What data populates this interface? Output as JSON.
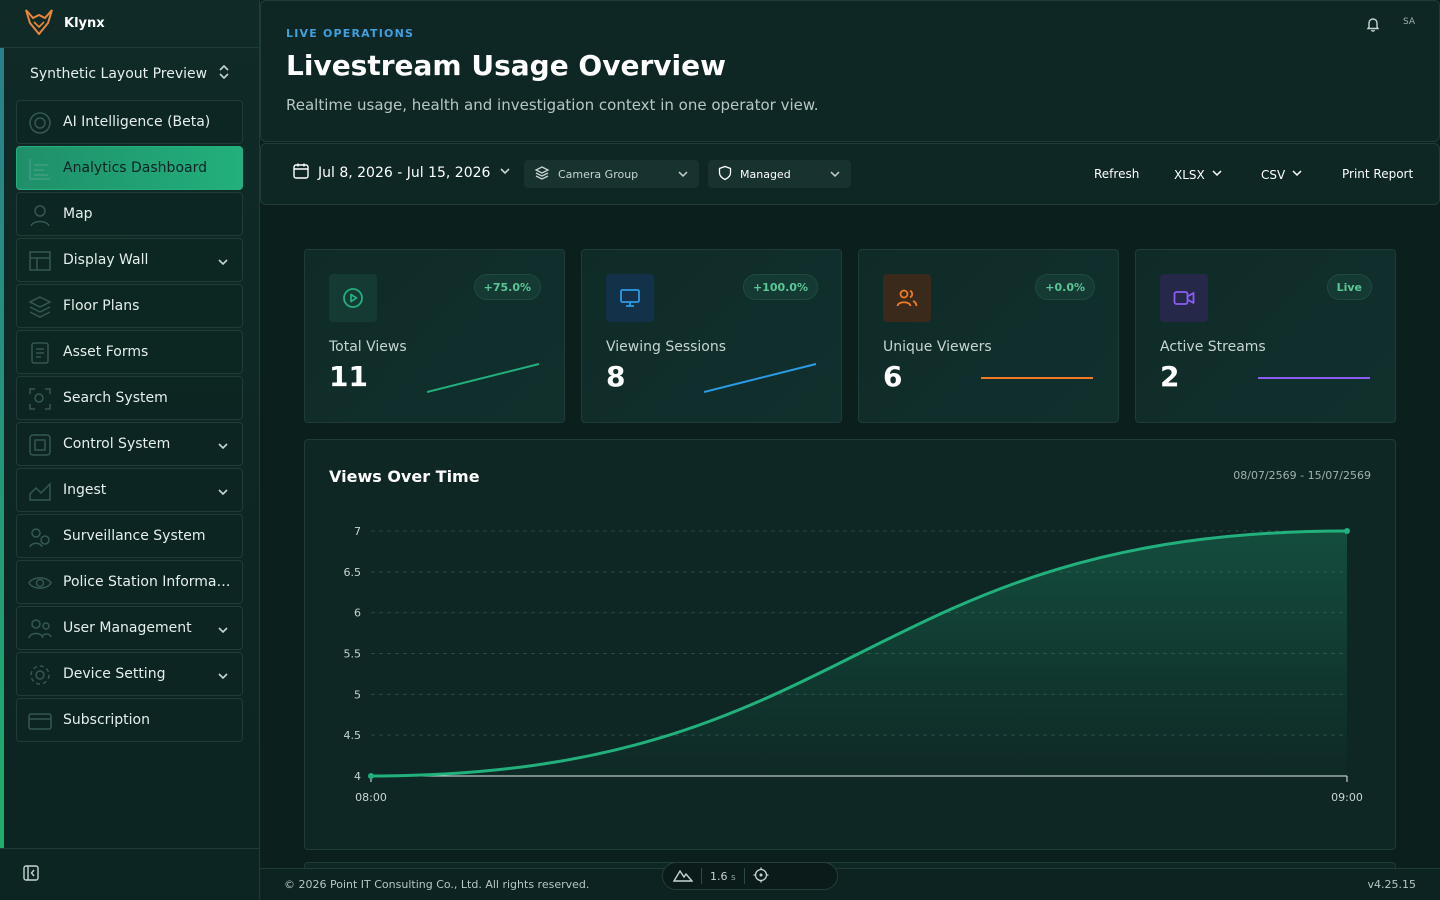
{
  "brand": {
    "name": "Klynx"
  },
  "workspace": {
    "name": "Synthetic Layout Preview"
  },
  "sidebar": {
    "items": [
      {
        "label": "AI Intelligence (Beta)",
        "icon": "ai-icon",
        "expandable": false
      },
      {
        "label": "Analytics Dashboard",
        "icon": "analytics-icon",
        "expandable": false,
        "active": true
      },
      {
        "label": "Map",
        "icon": "map-icon",
        "expandable": false
      },
      {
        "label": "Display Wall",
        "icon": "display-wall-icon",
        "expandable": true
      },
      {
        "label": "Floor Plans",
        "icon": "floor-plans-icon",
        "expandable": false
      },
      {
        "label": "Asset Forms",
        "icon": "asset-forms-icon",
        "expandable": false
      },
      {
        "label": "Search System",
        "icon": "search-system-icon",
        "expandable": false
      },
      {
        "label": "Control System",
        "icon": "control-system-icon",
        "expandable": true
      },
      {
        "label": "Ingest",
        "icon": "ingest-icon",
        "expandable": true
      },
      {
        "label": "Surveillance System",
        "icon": "surveillance-icon",
        "expandable": false
      },
      {
        "label": "Police Station Informati...",
        "icon": "police-station-icon",
        "expandable": false
      },
      {
        "label": "User Management",
        "icon": "user-management-icon",
        "expandable": true
      },
      {
        "label": "Device Setting",
        "icon": "device-setting-icon",
        "expandable": true
      },
      {
        "label": "Subscription",
        "icon": "subscription-icon",
        "expandable": false
      }
    ]
  },
  "header": {
    "eyebrow": "LIVE OPERATIONS",
    "title": "Livestream Usage Overview",
    "subtitle": "Realtime usage, health and investigation context in one operator view.",
    "avatar_initials": "SA"
  },
  "toolbar": {
    "date_range": "Jul 8, 2026 - Jul 15, 2026",
    "camera_group_placeholder": "Camera Group",
    "managed_label": "Managed",
    "refresh_label": "Refresh",
    "xlsx_label": "XLSX",
    "csv_label": "CSV",
    "print_label": "Print Report"
  },
  "stats": [
    {
      "label": "Total Views",
      "value": "11",
      "badge": "+75.0%",
      "color": "#22b07c",
      "icon": "play-circle-icon"
    },
    {
      "label": "Viewing Sessions",
      "value": "8",
      "badge": "+100.0%",
      "color": "#2b9be6",
      "icon": "monitor-icon"
    },
    {
      "label": "Unique Viewers",
      "value": "6",
      "badge": "+0.0%",
      "color": "#f07a26",
      "icon": "users-icon"
    },
    {
      "label": "Active Streams",
      "value": "2",
      "badge": "Live",
      "color": "#8b5cf6",
      "icon": "video-icon"
    }
  ],
  "chart": {
    "title": "Views Over Time",
    "range": "08/07/2569 - 15/07/2569"
  },
  "chart_data": {
    "type": "area",
    "x": [
      "08:00",
      "09:00"
    ],
    "values": [
      4,
      7
    ],
    "ylim": [
      4,
      7
    ],
    "yticks": [
      "4",
      "4.5",
      "5",
      "5.5",
      "6",
      "6.5",
      "7"
    ],
    "xticks": [
      "08:00",
      "09:00"
    ],
    "title": "Views Over Time",
    "color": "#22b07c",
    "grid": true
  },
  "footer": {
    "copyright": "© 2026 Point IT Consulting Co., Ltd. All rights reserved.",
    "version": "v4.25.15",
    "perf_value": "1.6",
    "perf_unit": "s"
  },
  "colors": {
    "accent": "#22b07c",
    "eyebrow": "#3fa0e0",
    "background": "#0b1f1d"
  }
}
